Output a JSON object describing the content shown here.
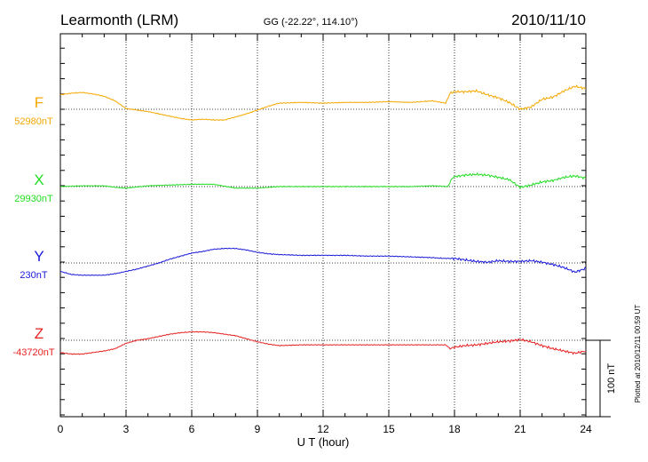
{
  "header": {
    "station": "Learmonth (LRM)",
    "coords": "GG (-22.22°, 114.10°)",
    "date": "2010/11/10"
  },
  "footer": {
    "plotted": "Plotted at 2010/12/11 00:59 UT"
  },
  "chart_data": {
    "type": "line",
    "xlabel": "U T (hour)",
    "x_ticks": [
      "0",
      "3",
      "6",
      "9",
      "12",
      "15",
      "18",
      "21",
      "24"
    ],
    "xlim": [
      0,
      24
    ],
    "grid": true,
    "scale_bar_label": "100 nT",
    "scale_nT": 100,
    "panel_span_nT": 100,
    "series": [
      {
        "name": "F",
        "baseline_label": "52980nT",
        "baseline_nT": 52980,
        "color": "#f5a800",
        "x": [
          0,
          0.5,
          1,
          1.5,
          2,
          2.5,
          3,
          3.5,
          4,
          4.5,
          5,
          5.5,
          6,
          6.5,
          7,
          7.5,
          8,
          8.5,
          9,
          9.5,
          10,
          11,
          12,
          13,
          14,
          15,
          16,
          17,
          17.6,
          17.8,
          18,
          18.5,
          19,
          19.5,
          20,
          20.5,
          21,
          21.5,
          22,
          22.5,
          23,
          23.5,
          24
        ],
        "values": [
          52999,
          53001,
          53002,
          53000,
          52997,
          52991,
          52981,
          52979,
          52977,
          52974,
          52971,
          52968,
          52966,
          52967,
          52966,
          52966,
          52970,
          52974,
          52979,
          52984,
          52988,
          52989,
          52988,
          52989,
          52989,
          52990,
          52989,
          52991,
          52988,
          53001,
          53003,
          53003,
          53004,
          52999,
          52995,
          52989,
          52980,
          52983,
          52993,
          52996,
          53004,
          53010,
          53007
        ]
      },
      {
        "name": "X",
        "baseline_label": "29930nT",
        "baseline_nT": 29930,
        "color": "#22dd22",
        "x": [
          0,
          1,
          2,
          2.5,
          3,
          4,
          5,
          6,
          7,
          8,
          9,
          10,
          11,
          12,
          13,
          14,
          15,
          16,
          17,
          17.7,
          17.9,
          18,
          18.5,
          19,
          19.5,
          20,
          20.5,
          21,
          21.5,
          22,
          22.5,
          23,
          23.5,
          24
        ],
        "values": [
          29930,
          29931,
          29931,
          29929,
          29928,
          29931,
          29932,
          29933,
          29933,
          29928,
          29928,
          29930,
          29930,
          29930,
          29930,
          29930,
          29930,
          29930,
          29931,
          29930,
          29941,
          29943,
          29945,
          29946,
          29945,
          29942,
          29939,
          29929,
          29932,
          29936,
          29938,
          29942,
          29944,
          29941
        ]
      },
      {
        "name": "Y",
        "baseline_label": "230nT",
        "baseline_nT": 230,
        "color": "#1a1adc",
        "x": [
          0,
          0.5,
          1,
          1.5,
          2,
          2.5,
          3,
          3.5,
          4,
          4.5,
          5,
          5.5,
          6,
          6.5,
          7,
          7.5,
          8,
          8.5,
          9,
          9.5,
          10,
          11,
          12,
          13,
          14,
          15,
          16,
          17,
          17.5,
          18,
          18.5,
          19,
          19.5,
          20,
          20.5,
          21,
          21.5,
          22,
          22.5,
          23,
          23.5,
          24
        ],
        "values": [
          219,
          215,
          214,
          214,
          214,
          216,
          219,
          222,
          226,
          230,
          235,
          239,
          243,
          245,
          248,
          249,
          249,
          247,
          244,
          242,
          241,
          240,
          240,
          240,
          239,
          239,
          238,
          237,
          236,
          236,
          234,
          232,
          231,
          233,
          232,
          232,
          233,
          231,
          228,
          224,
          218,
          223
        ]
      },
      {
        "name": "Z",
        "baseline_label": "-43720nT",
        "baseline_nT": -43720,
        "color": "#e82020",
        "x": [
          0,
          0.5,
          1,
          1.5,
          2,
          2.5,
          3,
          3.5,
          4,
          4.5,
          5,
          5.5,
          6,
          6.5,
          7,
          7.5,
          8,
          8.5,
          9,
          9.5,
          10,
          11,
          12,
          13,
          14,
          15,
          16,
          17,
          17.6,
          17.8,
          18,
          18.5,
          19,
          19.5,
          20,
          20.5,
          21,
          21.5,
          22,
          22.5,
          23,
          23.5,
          24
        ],
        "values": [
          -43736,
          -43738,
          -43738,
          -43736,
          -43734,
          -43731,
          -43724,
          -43720,
          -43718,
          -43715,
          -43712,
          -43710,
          -43709,
          -43709,
          -43710,
          -43712,
          -43714,
          -43718,
          -43722,
          -43725,
          -43727,
          -43726,
          -43726,
          -43726,
          -43726,
          -43726,
          -43726,
          -43726,
          -43726,
          -43731,
          -43729,
          -43727,
          -43726,
          -43724,
          -43722,
          -43721,
          -43719,
          -43722,
          -43727,
          -43731,
          -43734,
          -43737,
          -43734
        ]
      }
    ]
  }
}
